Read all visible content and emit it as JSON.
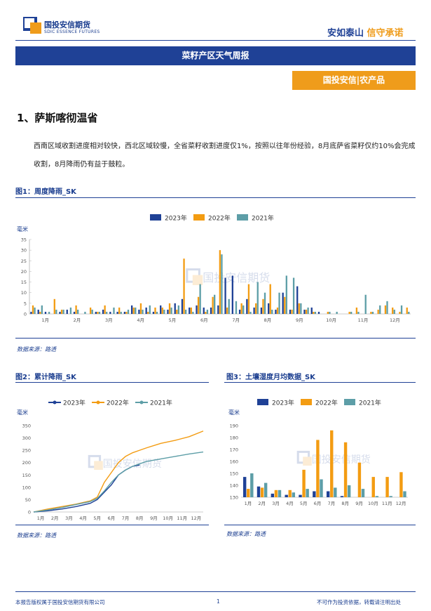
{
  "header": {
    "logo_text": "国投安信期货",
    "logo_sub": "SDIC ESSENCE FUTURES",
    "slogan_part1": "安如泰山",
    "slogan_part2": "信守承诺"
  },
  "banner_title": "菜籽产区天气周报",
  "tag": "国投安信|农产品",
  "section": {
    "title": "1、萨斯喀彻温省",
    "paragraph": "西南区域收割进度相对较快，西北区域较慢，全省菜籽收割进度仅1%，按照以往年份经验，8月底萨省菜籽仅约10%会完成收割，8月降雨仍有益于鼓粒。"
  },
  "watermark": "国投安信期货",
  "colors": {
    "c2023": "#1f4196",
    "c2022": "#f39c12",
    "c2021": "#5d9ea7"
  },
  "figures": {
    "fig1": {
      "title": "图1：周度降雨_SK",
      "source": "数据来源：路透"
    },
    "fig2": {
      "title": "图2：累计降雨_SK",
      "source": "数据来源：路透"
    },
    "fig3": {
      "title": "图3：土壤湿度月均数据_SK",
      "source": "数据来源：路透"
    }
  },
  "footer": {
    "left": "本报告版权属于国投安信期货有限公司",
    "page": "1",
    "right": "不可作为投资依据，转载请注明出处"
  },
  "chart_data": [
    {
      "id": "fig1",
      "type": "bar",
      "unit": "毫米",
      "ylim": [
        0,
        35
      ],
      "yticks": [
        0,
        5,
        10,
        15,
        20,
        25,
        30,
        35
      ],
      "months": [
        "1月",
        "2月",
        "3月",
        "4月",
        "5月",
        "6月",
        "7月",
        "8月",
        "9月",
        "10月",
        "11月",
        "12月"
      ],
      "legend_position": "top",
      "series": [
        {
          "name": "2023年",
          "values": [
            1,
            2,
            1,
            0,
            1,
            2,
            1,
            0,
            0,
            1,
            2,
            1,
            1,
            1,
            4,
            2,
            3,
            1,
            4,
            2,
            5,
            7,
            3,
            4,
            3,
            3,
            4,
            17,
            18,
            2,
            7,
            3,
            3,
            5,
            2,
            10,
            2,
            13,
            2,
            3,
            1,
            0,
            0,
            0,
            0,
            0,
            0,
            0,
            0,
            0,
            0,
            0,
            0
          ]
        },
        {
          "name": "2022年",
          "values": [
            4,
            1,
            0,
            7,
            2,
            0,
            4,
            0,
            3,
            1,
            4,
            0,
            3,
            1,
            3,
            5,
            1,
            3,
            3,
            5,
            2,
            26,
            3,
            8,
            1,
            8,
            30,
            3,
            0,
            5,
            14,
            5,
            7,
            14,
            3,
            8,
            2,
            5,
            2,
            1,
            0,
            1,
            0,
            0,
            1,
            3,
            0,
            1,
            2,
            4,
            3,
            1,
            3
          ]
        },
        {
          "name": "2021年",
          "values": [
            3,
            4,
            1,
            2,
            2,
            3,
            2,
            1,
            2,
            1,
            1,
            3,
            1,
            2,
            3,
            2,
            4,
            1,
            2,
            3,
            4,
            2,
            1,
            14,
            2,
            9,
            28,
            7,
            6,
            4,
            1,
            15,
            10,
            2,
            10,
            18,
            17,
            5,
            3,
            1,
            0,
            1,
            1,
            0,
            1,
            1,
            9,
            1,
            4,
            6,
            2,
            4,
            1
          ]
        }
      ]
    },
    {
      "id": "fig2",
      "type": "line",
      "unit": "毫米",
      "ylim": [
        0,
        350
      ],
      "yticks": [
        0,
        50,
        100,
        150,
        200,
        250,
        300,
        350
      ],
      "months": [
        "1月",
        "2月",
        "3月",
        "4月",
        "5月",
        "6月",
        "7月",
        "8月",
        "9月",
        "10月",
        "11月",
        "12月"
      ],
      "legend_position": "top",
      "series": [
        {
          "name": "2023年",
          "x": [
            0,
            1,
            2,
            3,
            4,
            4.5,
            5,
            5.5,
            6,
            6.5,
            7,
            7.5
          ],
          "values": [
            0,
            5,
            12,
            22,
            35,
            50,
            80,
            110,
            150,
            170,
            185,
            190
          ]
        },
        {
          "name": "2022年",
          "x": [
            0,
            1,
            2,
            3,
            4,
            4.5,
            5,
            5.5,
            6,
            6.5,
            7,
            7.5,
            8,
            9,
            10,
            11,
            12
          ],
          "values": [
            0,
            12,
            22,
            32,
            45,
            60,
            120,
            160,
            200,
            225,
            240,
            250,
            260,
            278,
            290,
            305,
            328
          ]
        },
        {
          "name": "2021年",
          "x": [
            0,
            1,
            2,
            3,
            4,
            4.5,
            5,
            5.5,
            6,
            6.5,
            7,
            7.5,
            8,
            9,
            10,
            11,
            12
          ],
          "values": [
            0,
            8,
            18,
            30,
            42,
            55,
            85,
            120,
            150,
            170,
            185,
            195,
            205,
            215,
            225,
            235,
            243
          ]
        }
      ]
    },
    {
      "id": "fig3",
      "type": "bar",
      "unit": "毫米",
      "ylim": [
        130,
        190
      ],
      "yticks": [
        130,
        140,
        150,
        160,
        170,
        180,
        190
      ],
      "months": [
        "1月",
        "2月",
        "3月",
        "4月",
        "5月",
        "6月",
        "7月",
        "8月",
        "9月",
        "10月",
        "11月",
        "12月"
      ],
      "legend_position": "top",
      "series": [
        {
          "name": "2023年",
          "values": [
            147,
            139,
            133,
            132,
            132,
            135,
            135,
            131,
            null,
            null,
            null,
            null
          ]
        },
        {
          "name": "2022年",
          "values": [
            137,
            138,
            136,
            136,
            153,
            178,
            186,
            176,
            159,
            147,
            147,
            151
          ]
        },
        {
          "name": "2021年",
          "values": [
            150,
            142,
            136,
            134,
            137,
            145,
            138,
            140,
            137,
            131,
            131,
            135
          ]
        }
      ]
    }
  ]
}
